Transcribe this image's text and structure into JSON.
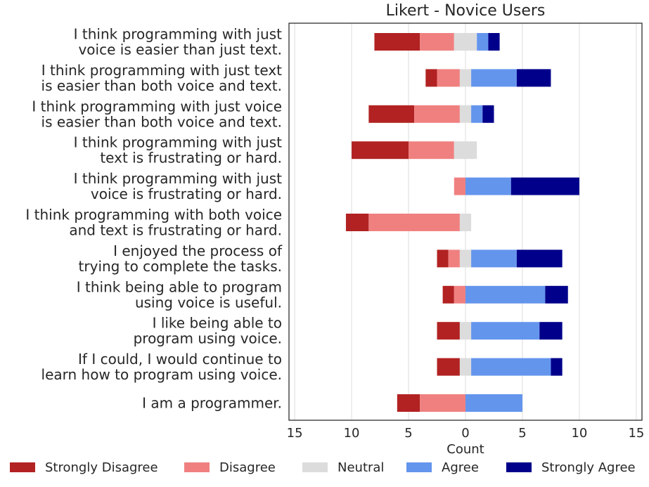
{
  "chart_data": {
    "type": "bar",
    "orientation": "horizontal",
    "stacked": "diverging",
    "title": "Likert - Novice Users",
    "xlabel": "Count",
    "ylabel": "",
    "xlim": [
      -15.5,
      15.5
    ],
    "xticks": [
      -15,
      -10,
      -5,
      0,
      5,
      10,
      15
    ],
    "xtick_labels": [
      "15",
      "10",
      "5",
      "0",
      "5",
      "10",
      "15"
    ],
    "grid": "vertical",
    "legend_position": "bottom",
    "categories": [
      [
        "I think programming with just",
        "voice is easier than just text."
      ],
      [
        "I think programming with just text",
        "is easier than both voice and text."
      ],
      [
        "I think programming with just voice",
        "is easier than both voice and text."
      ],
      [
        "I think programming with just",
        "text is frustrating or hard."
      ],
      [
        "I think programming with just",
        "voice is frustrating or hard."
      ],
      [
        "I think programming with both voice",
        "and text is frustrating or hard."
      ],
      [
        "I enjoyed the process of",
        "trying to complete the tasks."
      ],
      [
        "I think being able to program",
        "using voice is useful."
      ],
      [
        "I like being able to",
        "program using voice."
      ],
      [
        "If I could, I would continue to",
        "learn how to program using voice."
      ],
      [
        "I am a programmer."
      ]
    ],
    "series": [
      {
        "name": "Strongly Disagree",
        "color": "#b22222",
        "values": [
          4,
          1,
          4,
          5,
          0,
          2,
          1,
          1,
          2,
          2,
          2
        ]
      },
      {
        "name": "Disagree",
        "color": "#f08080",
        "values": [
          3,
          2,
          4,
          4,
          1,
          8,
          1,
          1,
          0,
          0,
          4
        ]
      },
      {
        "name": "Neutral",
        "color": "#dcdcdc",
        "values": [
          2,
          1,
          1,
          2,
          0,
          1,
          1,
          0,
          1,
          1,
          0
        ]
      },
      {
        "name": "Agree",
        "color": "#6495ed",
        "values": [
          1,
          4,
          1,
          0,
          4,
          0,
          4,
          7,
          6,
          7,
          5
        ]
      },
      {
        "name": "Strongly Agree",
        "color": "#00008b",
        "values": [
          1,
          3,
          1,
          0,
          6,
          0,
          4,
          2,
          2,
          1,
          0
        ]
      }
    ]
  }
}
